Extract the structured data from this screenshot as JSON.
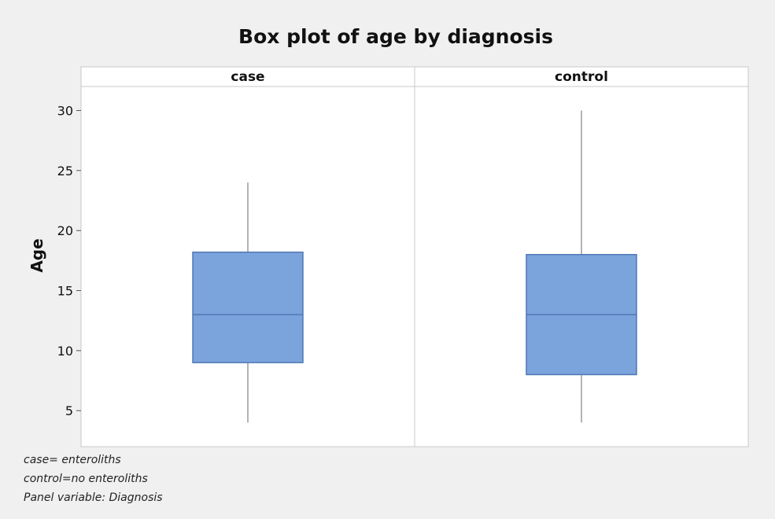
{
  "chart_data": {
    "type": "box",
    "title": "Box plot of age by diagnosis",
    "ylabel": "Age",
    "xlabel": "",
    "ylim": [
      2,
      32
    ],
    "yticks": [
      5,
      10,
      15,
      20,
      25,
      30
    ],
    "panels": [
      {
        "label": "case",
        "min": 4,
        "q1": 9,
        "median": 13,
        "q3": 18.2,
        "max": 24
      },
      {
        "label": "control",
        "min": 4,
        "q1": 8,
        "median": 13,
        "q3": 18,
        "max": 30
      }
    ],
    "box_color": "#7ba3dc",
    "box_edge_color": "#4f78b5",
    "whisker_color": "#9a9a9a",
    "grid": false,
    "legend": "none"
  },
  "footnotes": {
    "case_def": "case= enteroliths",
    "control_def": "control=no enteroliths",
    "panel_variable": "Panel variable: Diagnosis"
  }
}
